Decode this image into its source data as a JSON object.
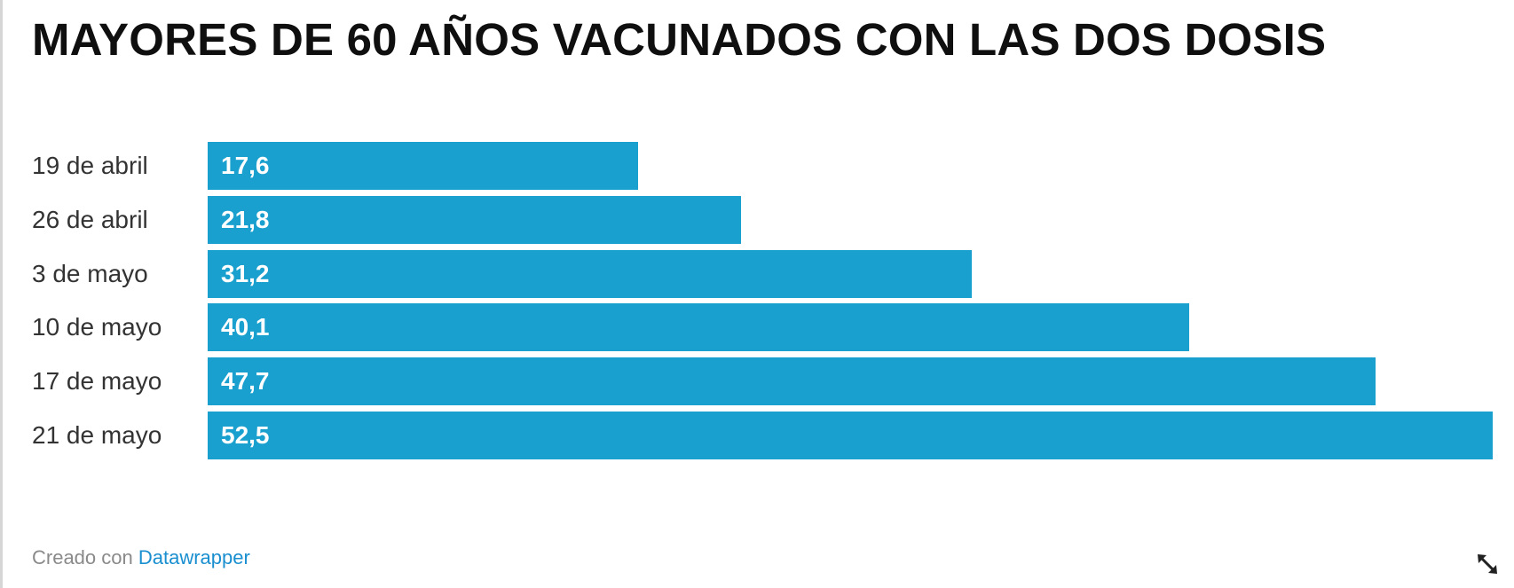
{
  "title": "MAYORES DE 60 AÑOS VACUNADOS CON LAS DOS DOSIS",
  "footer": {
    "prefix": "Creado con",
    "link": "Datawrapper"
  },
  "icons": {
    "expand": "expand-arrows-icon"
  },
  "colors": {
    "bar": "#1aa0cf",
    "value_text": "#ffffff",
    "link": "#1a8fd0"
  },
  "chart_data": {
    "type": "bar",
    "orientation": "horizontal",
    "title": "MAYORES DE 60 AÑOS VACUNADOS CON LAS DOS DOSIS",
    "categories": [
      "19 de abril",
      "26 de abril",
      "3 de mayo",
      "10 de mayo",
      "17 de mayo",
      "21 de mayo"
    ],
    "values": [
      17.6,
      21.8,
      31.2,
      40.1,
      47.7,
      52.5
    ],
    "value_labels": [
      "17,6",
      "21,8",
      "31,2",
      "40,1",
      "47,7",
      "52,5"
    ],
    "xlim": [
      0,
      52.5
    ],
    "grid": false,
    "legend": "none"
  }
}
